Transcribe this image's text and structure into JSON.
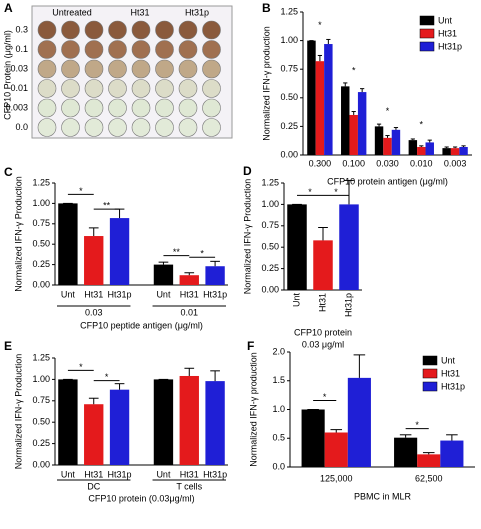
{
  "plate": {
    "panel": "A",
    "ylabel": "CFP10 Protein (μg/ml)",
    "columns": [
      "Untreated",
      "Ht31",
      "Ht31p"
    ],
    "rows": [
      "0.3",
      "0.1",
      "0.03",
      "0.01",
      "0.003",
      "0.0"
    ]
  },
  "chart_data": [
    {
      "panel": "B",
      "type": "bar",
      "ylabel": "Normalized IFN-γ production",
      "xlabel": "CFP10 protein antigen (μg/ml)",
      "categories": [
        "0.300",
        "0.100",
        "0.030",
        "0.010",
        "0.003"
      ],
      "series": [
        {
          "name": "Unt",
          "color": "#000000",
          "values": [
            1.0,
            0.6,
            0.25,
            0.13,
            0.06
          ],
          "errors": [
            0,
            0.03,
            0.02,
            0.01,
            0.01
          ]
        },
        {
          "name": "Ht31",
          "color": "#e41a1c",
          "values": [
            0.82,
            0.35,
            0.15,
            0.07,
            0.06
          ],
          "errors": [
            0.05,
            0.03,
            0.02,
            0.01,
            0.01
          ]
        },
        {
          "name": "Ht31p",
          "color": "#1f1fd6",
          "values": [
            0.97,
            0.55,
            0.22,
            0.11,
            0.07
          ],
          "errors": [
            0.04,
            0.03,
            0.02,
            0.02,
            0.01
          ]
        }
      ],
      "ylim": [
        0,
        1.25
      ],
      "yticks": [
        {
          "value": 0,
          "label": "0.00"
        },
        {
          "value": 0.25,
          "label": "0.25"
        },
        {
          "value": 0.5,
          "label": "0.50"
        },
        {
          "value": 0.75,
          "label": "0.75"
        },
        {
          "value": 1,
          "label": "1.00"
        },
        {
          "value": 1.25,
          "label": "1.25"
        }
      ],
      "legend": "upper right",
      "annotations": [
        "*",
        "*",
        "*",
        "*"
      ]
    },
    {
      "panel": "C",
      "type": "bar",
      "ylabel": "Normalized IFN-γ Production",
      "xlabel": "CFP10 peptide antigen (μg/ml)",
      "colors": [
        "#000000",
        "#e41a1c",
        "#1f1fd6"
      ],
      "groups": [
        {
          "label": "0.03",
          "categories": [
            "Unt",
            "Ht31",
            "Ht31p"
          ],
          "values": [
            1.0,
            0.6,
            0.82
          ],
          "errors": [
            0,
            0.1,
            0.11
          ]
        },
        {
          "label": "0.01",
          "categories": [
            "Unt",
            "Ht31",
            "Ht31p"
          ],
          "values": [
            0.25,
            0.12,
            0.23
          ],
          "errors": [
            0.03,
            0.03,
            0.06
          ]
        }
      ],
      "ylim": [
        0,
        1.25
      ],
      "yticks": [
        {
          "value": 0,
          "label": "0.00"
        },
        {
          "value": 0.25,
          "label": "0.25"
        },
        {
          "value": 0.5,
          "label": "0.50"
        },
        {
          "value": 0.75,
          "label": "0.75"
        },
        {
          "value": 1,
          "label": "1.00"
        },
        {
          "value": 1.25,
          "label": "1.25"
        }
      ],
      "annotations": [
        "*",
        "**",
        "**",
        "*"
      ]
    },
    {
      "panel": "D",
      "type": "bar",
      "ylabel": "Normalized IFN-γ Production",
      "xlabel": [
        "CFP10 protein",
        "0.03 μg/ml"
      ],
      "colors": [
        "#000000",
        "#e41a1c",
        "#1f1fd6"
      ],
      "groups": [
        {
          "categories": [
            "Unt",
            "Ht31",
            "Ht31p"
          ],
          "values": [
            1.0,
            0.58,
            1.0
          ],
          "errors": [
            0,
            0.15,
            0.28
          ]
        }
      ],
      "ylim": [
        0,
        1.25
      ],
      "yticks": [
        {
          "value": 0,
          "label": "0.00"
        },
        {
          "value": 0.25,
          "label": "0.25"
        },
        {
          "value": 0.5,
          "label": "0.50"
        },
        {
          "value": 0.75,
          "label": "0.75"
        },
        {
          "value": 1,
          "label": "1.00"
        },
        {
          "value": 1.25,
          "label": "1.25"
        }
      ],
      "annotations": [
        "*",
        "*"
      ]
    },
    {
      "panel": "E",
      "type": "bar",
      "ylabel": "Normalized IFN-γ Production",
      "xlabel": "CFP10 protein (0.03μg/ml)",
      "colors": [
        "#000000",
        "#e41a1c",
        "#1f1fd6"
      ],
      "groups": [
        {
          "label": "DC",
          "categories": [
            "Unt",
            "Ht31",
            "Ht31p"
          ],
          "values": [
            1.0,
            0.71,
            0.88
          ],
          "errors": [
            0,
            0.07,
            0.07
          ]
        },
        {
          "label": "T cells",
          "categories": [
            "Unt",
            "Ht31",
            "Ht31p"
          ],
          "values": [
            1.0,
            1.04,
            0.98
          ],
          "errors": [
            0,
            0.09,
            0.12
          ]
        }
      ],
      "ylim": [
        0,
        1.25
      ],
      "yticks": [
        {
          "value": 0,
          "label": "0.00"
        },
        {
          "value": 0.25,
          "label": "0.25"
        },
        {
          "value": 0.5,
          "label": "0.50"
        },
        {
          "value": 0.75,
          "label": "0.75"
        },
        {
          "value": 1,
          "label": "1.00"
        },
        {
          "value": 1.25,
          "label": "1.25"
        }
      ],
      "annotations": [
        "*",
        "*"
      ]
    },
    {
      "panel": "F",
      "type": "bar",
      "ylabel": "Normalized IFN-γ production",
      "xlabel": "PBMC in MLR",
      "categories": [
        "125,000",
        "62,500"
      ],
      "series": [
        {
          "name": "Unt",
          "color": "#000000",
          "values": [
            1.0,
            0.51
          ],
          "errors": [
            0,
            0.05
          ]
        },
        {
          "name": "Ht31",
          "color": "#e41a1c",
          "values": [
            0.6,
            0.22
          ],
          "errors": [
            0.05,
            0.03
          ]
        },
        {
          "name": "Ht31p",
          "color": "#1f1fd6",
          "values": [
            1.55,
            0.46
          ],
          "errors": [
            0.4,
            0.1
          ]
        }
      ],
      "ylim": [
        0,
        2
      ],
      "yticks": [
        {
          "value": 0,
          "label": "0.0"
        },
        {
          "value": 0.5,
          "label": "0.5"
        },
        {
          "value": 1,
          "label": "1.0"
        },
        {
          "value": 1.5,
          "label": "1.5"
        },
        {
          "value": 2,
          "label": "2.0"
        }
      ],
      "legend": "upper right",
      "annotations": [
        "*",
        "*"
      ]
    }
  ]
}
